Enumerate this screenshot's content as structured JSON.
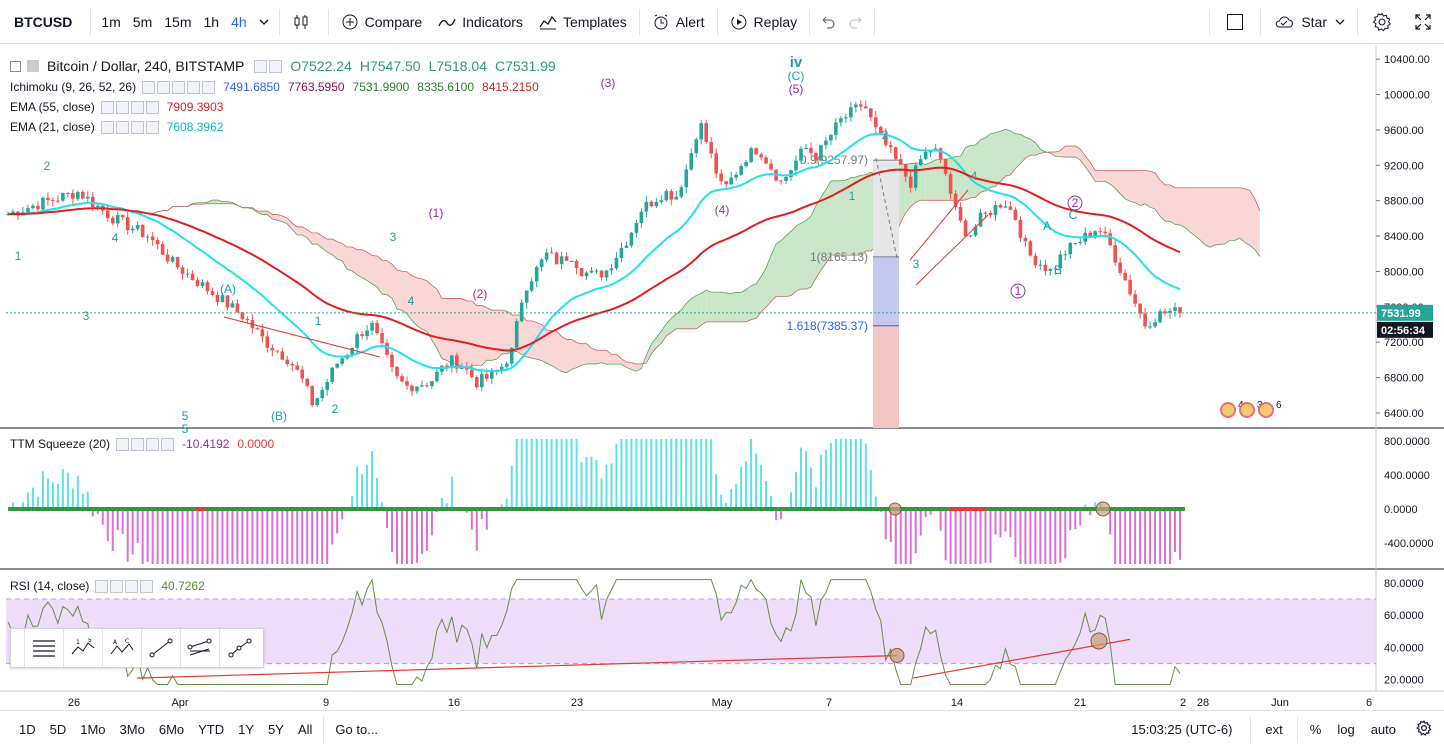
{
  "toolbar": {
    "symbol": "BTCUSD",
    "intervals": [
      "1m",
      "5m",
      "15m",
      "1h",
      "4h"
    ],
    "active_interval": "4h",
    "compare": "Compare",
    "indicators": "Indicators",
    "templates": "Templates",
    "alert": "Alert",
    "replay": "Replay",
    "star": "Star"
  },
  "main_legend": {
    "title": "Bitcoin / Dollar, 240, BITSTAMP",
    "o": "O7522.24",
    "h": "H7547.50",
    "l": "L7518.04",
    "c": "C7531.99",
    "ichimoku_name": "Ichimoku (9, 26, 52, 26)",
    "ichimoku_values": [
      "7491.6850",
      "7763.5950",
      "7531.9900",
      "8335.6100",
      "8415.2150"
    ],
    "ema55_name": "EMA (55, close)",
    "ema55_value": "7909.3903",
    "ema21_name": "EMA (21, close)",
    "ema21_value": "7608.3962"
  },
  "ttm_legend": {
    "name": "TTM Squeeze (20)",
    "v1": "-10.4192",
    "v2": "0.0000"
  },
  "rsi_legend": {
    "name": "RSI (14, close)",
    "value": "40.7262"
  },
  "price_axis": {
    "main_ticks": [
      "10400.00",
      "10000.00",
      "9600.00",
      "9200.00",
      "8800.00",
      "8400.00",
      "8000.00",
      "7600.00",
      "7200.00",
      "6800.00",
      "6400.00"
    ],
    "last_price": "7531.99",
    "countdown": "02:56:34",
    "ttm_ticks": [
      "800.0000",
      "400.0000",
      "0.0000",
      "-400.0000"
    ],
    "rsi_ticks": [
      "80.0000",
      "60.0000",
      "40.0000",
      "20.0000"
    ]
  },
  "time_axis": [
    "26",
    "Apr",
    "9",
    "16",
    "23",
    "May",
    "7",
    "14",
    "21",
    "28",
    "Jun",
    "6"
  ],
  "time_axis_extra": "2",
  "annotations": {
    "elliott": [
      "2",
      "1",
      "3",
      "4",
      "5",
      "(A)",
      "(B)",
      "1",
      "2",
      "3",
      "4",
      "(1)",
      "(2)",
      "(3)",
      "(4)",
      "(5)",
      "iv",
      "(C)",
      "1",
      "2",
      "3",
      "4",
      "A",
      "B",
      "C",
      "1",
      "2",
      "5"
    ],
    "fib": [
      "0.9(9257.97)",
      "1(8165.13)",
      "1.618(7385.37)"
    ],
    "events": [
      "4",
      "3",
      "6"
    ]
  },
  "bottom": {
    "ranges": [
      "1D",
      "5D",
      "1Mo",
      "3Mo",
      "6Mo",
      "YTD",
      "1Y",
      "5Y",
      "All"
    ],
    "goto": "Go to...",
    "time": "15:03:25 (UTC-6)",
    "ext": "ext",
    "pct": "%",
    "log": "log",
    "auto": "auto"
  },
  "colors": {
    "up": "#26a69a",
    "down": "#ef5350",
    "ema55": "#e01e1e",
    "ema21": "#22e0f0",
    "cloud_up": "#9ed19c",
    "cloud_down": "#f6b5b5",
    "rsi_band": "#e9d5f7",
    "ttm_up": "#5fe0e8",
    "ttm_down": "#d96fd9"
  },
  "chart_data": {
    "type": "candlestick",
    "title": "Bitcoin / Dollar, 240, BITSTAMP",
    "ylim": [
      6400,
      10500
    ],
    "close_path": [
      [
        0,
        8650
      ],
      [
        3,
        8780
      ],
      [
        6,
        8900
      ],
      [
        9,
        8600
      ],
      [
        12,
        8400
      ],
      [
        14,
        8100
      ],
      [
        16,
        7900
      ],
      [
        18,
        7700
      ],
      [
        20,
        7500
      ],
      [
        22,
        7200
      ],
      [
        24,
        7000
      ],
      [
        25,
        6800
      ],
      [
        26,
        6500
      ],
      [
        27,
        6700
      ],
      [
        28,
        6950
      ],
      [
        29,
        7100
      ],
      [
        30,
        7300
      ],
      [
        31,
        7400
      ],
      [
        32,
        7100
      ],
      [
        33,
        6800
      ],
      [
        34,
        6700
      ],
      [
        36,
        6750
      ],
      [
        37,
        6900
      ],
      [
        38,
        7000
      ],
      [
        39,
        6900
      ],
      [
        40,
        6750
      ],
      [
        41,
        6800
      ],
      [
        42,
        6900
      ],
      [
        43,
        7100
      ],
      [
        44,
        7800
      ],
      [
        45,
        8000
      ],
      [
        46,
        8200
      ],
      [
        47,
        8100
      ],
      [
        48,
        8200
      ],
      [
        49,
        8000
      ],
      [
        50,
        7950
      ],
      [
        51,
        8000
      ],
      [
        52,
        8200
      ],
      [
        53,
        8400
      ],
      [
        54,
        8700
      ],
      [
        55,
        8800
      ],
      [
        56,
        8900
      ],
      [
        57,
        8850
      ],
      [
        58,
        9200
      ],
      [
        59,
        9700
      ],
      [
        60,
        9300
      ],
      [
        61,
        8900
      ],
      [
        62,
        9100
      ],
      [
        63,
        9300
      ],
      [
        64,
        9400
      ],
      [
        65,
        9200
      ],
      [
        66,
        9000
      ],
      [
        67,
        9200
      ],
      [
        68,
        9400
      ],
      [
        69,
        9300
      ],
      [
        70,
        9500
      ],
      [
        71,
        9700
      ],
      [
        72,
        9800
      ],
      [
        73,
        9900
      ],
      [
        74,
        9600
      ],
      [
        75,
        9400
      ],
      [
        76,
        9200
      ],
      [
        77,
        9000
      ],
      [
        78,
        9300
      ],
      [
        79,
        9400
      ],
      [
        80,
        9100
      ],
      [
        81,
        8600
      ],
      [
        82,
        8400
      ],
      [
        83,
        8600
      ],
      [
        84,
        8700
      ],
      [
        85,
        8800
      ],
      [
        86,
        8600
      ],
      [
        87,
        8200
      ],
      [
        88,
        8100
      ],
      [
        89,
        8000
      ],
      [
        90,
        8200
      ],
      [
        91,
        8300
      ],
      [
        92,
        8400
      ],
      [
        93,
        8500
      ],
      [
        94,
        8300
      ],
      [
        95,
        8000
      ],
      [
        96,
        7700
      ],
      [
        97,
        7400
      ],
      [
        98,
        7500
      ],
      [
        99,
        7550
      ],
      [
        100,
        7532
      ]
    ]
  }
}
